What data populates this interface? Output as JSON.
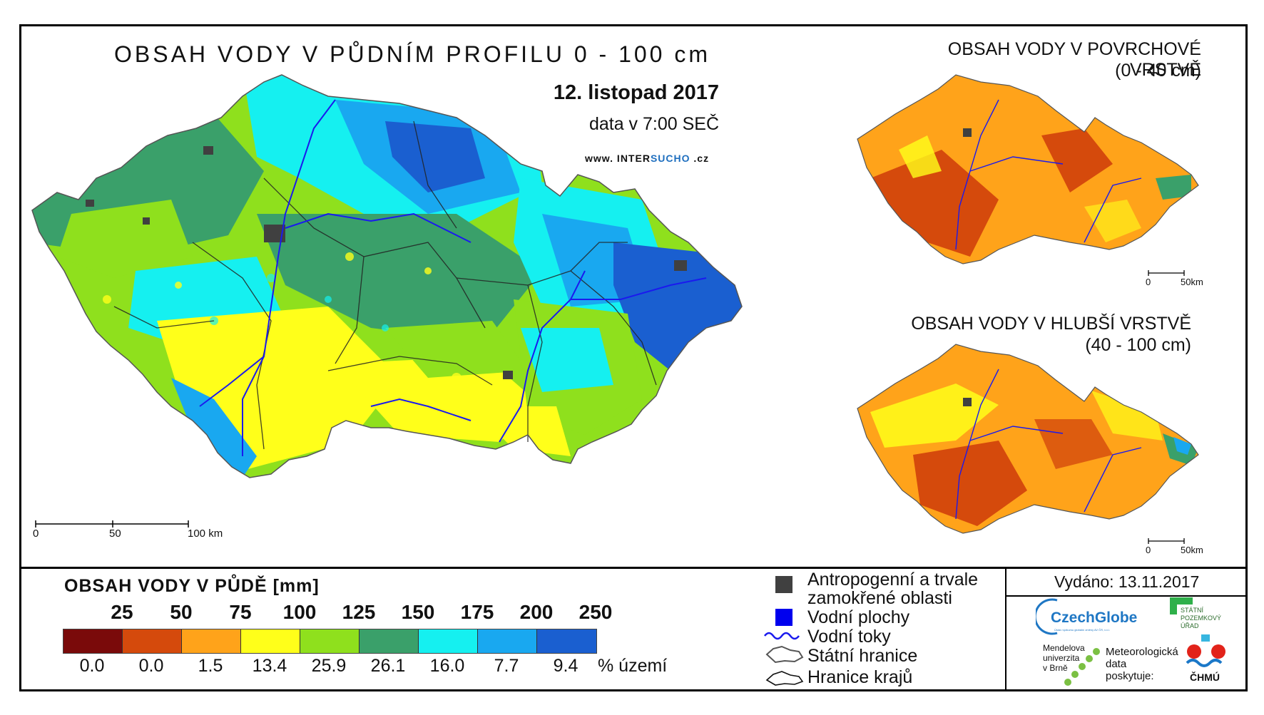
{
  "main": {
    "title": "OBSAH VODY V PŮDNÍM PROFILU 0 - 100 cm",
    "date": "12. listopad 2017",
    "time": "data v 7:00 SEČ",
    "web_prefix": "www. INTER",
    "web_accent": "SUCHO",
    "web_suffix": " .cz",
    "scale": {
      "labels": [
        "0",
        "50",
        "100 km"
      ]
    }
  },
  "top_map": {
    "title": "OBSAH VODY V POVRCHOVÉ VRSTVĚ",
    "subtitle": "(0 - 40 cm)",
    "scale": {
      "labels": [
        "0",
        "50km"
      ]
    }
  },
  "bottom_map": {
    "title": "OBSAH VODY V HLUBŠÍ VRSTVĚ",
    "subtitle": "(40 - 100 cm)",
    "scale": {
      "labels": [
        "0",
        "50km"
      ]
    }
  },
  "legend": {
    "title": "OBSAH VODY V PŮDĚ [mm]",
    "thresholds": [
      "25",
      "50",
      "75",
      "100",
      "125",
      "150",
      "175",
      "200",
      "250"
    ],
    "classes": [
      {
        "color": "#7a0a0a",
        "percent": "0.0"
      },
      {
        "color": "#d54a0c",
        "percent": "0.0"
      },
      {
        "color": "#ffa31a",
        "percent": "1.5"
      },
      {
        "color": "#ffff1a",
        "percent": "13.4"
      },
      {
        "color": "#8fe01d",
        "percent": "25.9"
      },
      {
        "color": "#3aa06a",
        "percent": "26.1"
      },
      {
        "color": "#15f0f0",
        "percent": "16.0"
      },
      {
        "color": "#19a8f0",
        "percent": "7.7"
      },
      {
        "color": "#1a5fd0",
        "percent": "9.4"
      }
    ],
    "percent_unit": "% území"
  },
  "symbols": {
    "anthropogenic_line1": "Antropogenní a trvale",
    "anthropogenic_line2": "zamokřené oblasti",
    "water_bodies": "Vodní plochy",
    "water_streams": "Vodní toky",
    "state_border": "Státní hranice",
    "region_border": "Hranice krajů"
  },
  "issued": "Vydáno: 13.11.2017",
  "logos": {
    "czechglobe": "CzechGlobe",
    "czechglobe_sub": "Ústav výzkumu globální změny AV ČR, v.v.i.",
    "spu_line1": "STÁTNÍ",
    "spu_line2": "POZEMKOVÝ",
    "spu_line3": "ÚŘAD",
    "mendel_line1": "Mendelova",
    "mendel_line2": "univerzita",
    "mendel_line3": "v Brně",
    "meteo_line1": "Meteorologická",
    "meteo_line2": "data",
    "meteo_line3": "poskytuje:",
    "chmu": "ČHMÚ"
  },
  "colors": {
    "anthropogenic": "#404040",
    "water_body": "#0000ee",
    "stream": "#1a1aee"
  }
}
